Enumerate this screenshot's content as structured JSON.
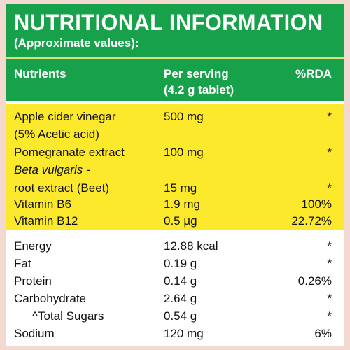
{
  "header": {
    "title": "NUTRITIONAL INFORMATION",
    "subtitle": "(Approximate values):",
    "col_nutrients": "Nutrients",
    "col_serving_line1": "Per serving",
    "col_serving_line2": "(4.2 g tablet)",
    "col_rda": "%RDA"
  },
  "active_ingredients": [
    {
      "name": "Apple cider vinegar",
      "amount": "500 mg",
      "rda": "*"
    },
    {
      "name": "(5% Acetic acid)",
      "amount": "",
      "rda": ""
    },
    {
      "name": "Pomegranate extract",
      "amount": "100 mg",
      "rda": "*"
    },
    {
      "name": "Beta vulgaris -",
      "amount": "",
      "rda": ""
    },
    {
      "name": "root extract (Beet)",
      "amount": "15 mg",
      "rda": "*"
    },
    {
      "name": "Vitamin B6",
      "amount": "1.9 mg",
      "rda": "100%"
    },
    {
      "name": "Vitamin B12",
      "amount": "0.5 µg",
      "rda": "22.72%"
    }
  ],
  "nutrition": [
    {
      "name": "Energy",
      "amount": "12.88 kcal",
      "rda": "*"
    },
    {
      "name": "Fat",
      "amount": "0.19 g",
      "rda": "*"
    },
    {
      "name": "Protein",
      "amount": "0.14 g",
      "rda": "0.26%"
    },
    {
      "name": "Carbohydrate",
      "amount": "2.64 g",
      "rda": "*"
    },
    {
      "name": "^Total Sugars",
      "amount": "0.54 g",
      "rda": "*"
    },
    {
      "name": "Sodium",
      "amount": "120 mg",
      "rda": "6%"
    }
  ],
  "colors": {
    "header_green": "#17a14a",
    "highlight_yellow": "#fde92c",
    "border_pink": "#f3d9cf"
  }
}
